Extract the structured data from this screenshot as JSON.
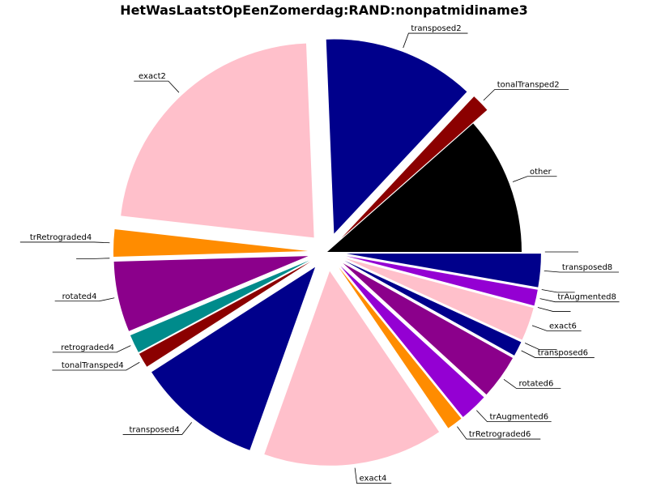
{
  "chart_data": {
    "type": "pie",
    "title": "HetWasLaatstOpEenZomerdag:RAND:nonpatmidiname3",
    "start_angle_deg": 0,
    "direction": "counterclockwise",
    "slices": [
      {
        "label": "other",
        "value": 11.2,
        "color": "#000000",
        "explode": 0.0
      },
      {
        "label": "tonalTransped2",
        "value": 1.5,
        "color": "#8b0000",
        "explode": 0.1
      },
      {
        "label": "transposed2",
        "value": 12.3,
        "color": "#00008b",
        "explode": 0.1
      },
      {
        "label": "exact2",
        "value": 22.0,
        "color": "#ffc0cb",
        "explode": 0.1
      },
      {
        "label": "trRetrograded4",
        "value": 2.2,
        "color": "#ff8c00",
        "explode": 0.1
      },
      {
        "label": "",
        "value": 0.0,
        "color": "#9400d3",
        "explode": 0.1
      },
      {
        "label": "rotated4",
        "value": 5.7,
        "color": "#8b008b",
        "explode": 0.1
      },
      {
        "label": "retrograded4",
        "value": 1.5,
        "color": "#008b8b",
        "explode": 0.1
      },
      {
        "label": "tonalTransped4",
        "value": 1.2,
        "color": "#8b0000",
        "explode": 0.1
      },
      {
        "label": "transposed4",
        "value": 10.2,
        "color": "#00008b",
        "explode": 0.1
      },
      {
        "label": "exact4",
        "value": 14.6,
        "color": "#ffc0cb",
        "explode": 0.1
      },
      {
        "label": "trRetrograded6",
        "value": 1.3,
        "color": "#ff8c00",
        "explode": 0.1
      },
      {
        "label": "trAugmented6",
        "value": 2.3,
        "color": "#9400d3",
        "explode": 0.1
      },
      {
        "label": "rotated6",
        "value": 3.6,
        "color": "#8b008b",
        "explode": 0.1
      },
      {
        "label": "transposed6",
        "value": 1.2,
        "color": "#00008b",
        "explode": 0.1
      },
      {
        "label": "",
        "value": 0.0,
        "color": "#008b8b",
        "explode": 0.1
      },
      {
        "label": "exact6",
        "value": 2.7,
        "color": "#ffc0cb",
        "explode": 0.1
      },
      {
        "label": "",
        "value": 0.0,
        "color": "#8b0000",
        "explode": 0.1
      },
      {
        "label": "trAugmented8",
        "value": 1.3,
        "color": "#9400d3",
        "explode": 0.1
      },
      {
        "label": "",
        "value": 0.0,
        "color": "#8b008b",
        "explode": 0.1
      },
      {
        "label": "transposed8",
        "value": 2.7,
        "color": "#00008b",
        "explode": 0.1
      },
      {
        "label": "",
        "value": 0.0,
        "color": "#ffc0cb",
        "explode": 0.1
      }
    ]
  }
}
